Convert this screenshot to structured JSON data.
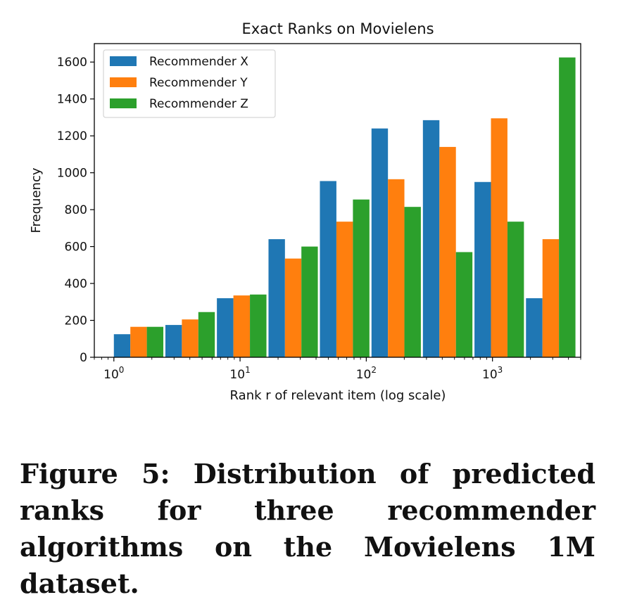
{
  "chart_data": {
    "type": "bar",
    "title": "Exact Ranks on Movielens",
    "xlabel": "Rank r of relevant item (log scale)",
    "ylabel": "Frequency",
    "x_scale": "log",
    "xlim": [
      0.7,
      5000
    ],
    "ylim": [
      0,
      1700
    ],
    "x_ticks": [
      {
        "base": "10",
        "exp": "0",
        "value": 1
      },
      {
        "base": "10",
        "exp": "1",
        "value": 10
      },
      {
        "base": "10",
        "exp": "2",
        "value": 100
      },
      {
        "base": "10",
        "exp": "3",
        "value": 1000
      }
    ],
    "y_ticks": [
      "0",
      "200",
      "400",
      "600",
      "800",
      "1000",
      "1200",
      "1400",
      "1600"
    ],
    "bin_edges": [
      1,
      2.56,
      6.55,
      16.8,
      42.9,
      110,
      281,
      720,
      1843,
      4718
    ],
    "grid": false,
    "legend_position": "top-left",
    "series": [
      {
        "name": "Recommender X",
        "color": "#1f77b4",
        "values": [
          125,
          175,
          320,
          640,
          955,
          1240,
          1285,
          950,
          320
        ]
      },
      {
        "name": "Recommender Y",
        "color": "#ff7f0e",
        "values": [
          165,
          205,
          335,
          535,
          735,
          965,
          1140,
          1295,
          640
        ]
      },
      {
        "name": "Recommender Z",
        "color": "#2ca02c",
        "values": [
          165,
          245,
          340,
          600,
          855,
          815,
          570,
          735,
          1625
        ]
      }
    ]
  },
  "caption": "Figure 5: Distribution of predicted ranks for three recommender algorithms on the Movielens 1M dataset."
}
